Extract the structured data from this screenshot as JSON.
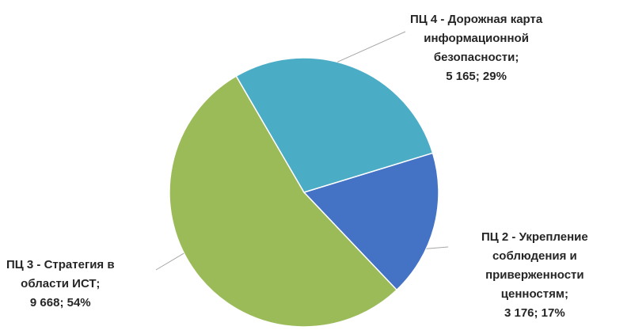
{
  "chart_data": {
    "type": "pie",
    "title": "",
    "slices": [
      {
        "name": "ПЦ 2 - Укрепление соблюдения и приверженности ценностям",
        "label_lines": [
          "ПЦ 2 - Укрепление",
          "соблюдения и",
          "приверженности",
          "ценностям;",
          "3 176; 17%"
        ],
        "value": 3176,
        "percent": 17,
        "color": "#4472C4"
      },
      {
        "name": "ПЦ 3 - Стратегия в области ИСТ",
        "label_lines": [
          "ПЦ 3 - Стратегия в",
          "области ИСТ;",
          "9 668; 54%"
        ],
        "value": 9668,
        "percent": 54,
        "color": "#9BBB59"
      },
      {
        "name": "ПЦ 4 - Дорожная карта информационной безопасности",
        "label_lines": [
          "ПЦ 4 - Дорожная карта",
          "информационной",
          "безопасности;",
          "5 165; 29%"
        ],
        "value": 5165,
        "percent": 29,
        "color": "#4BACC6"
      }
    ],
    "legend": "none",
    "data_labels": "outside-with-leader-lines"
  }
}
